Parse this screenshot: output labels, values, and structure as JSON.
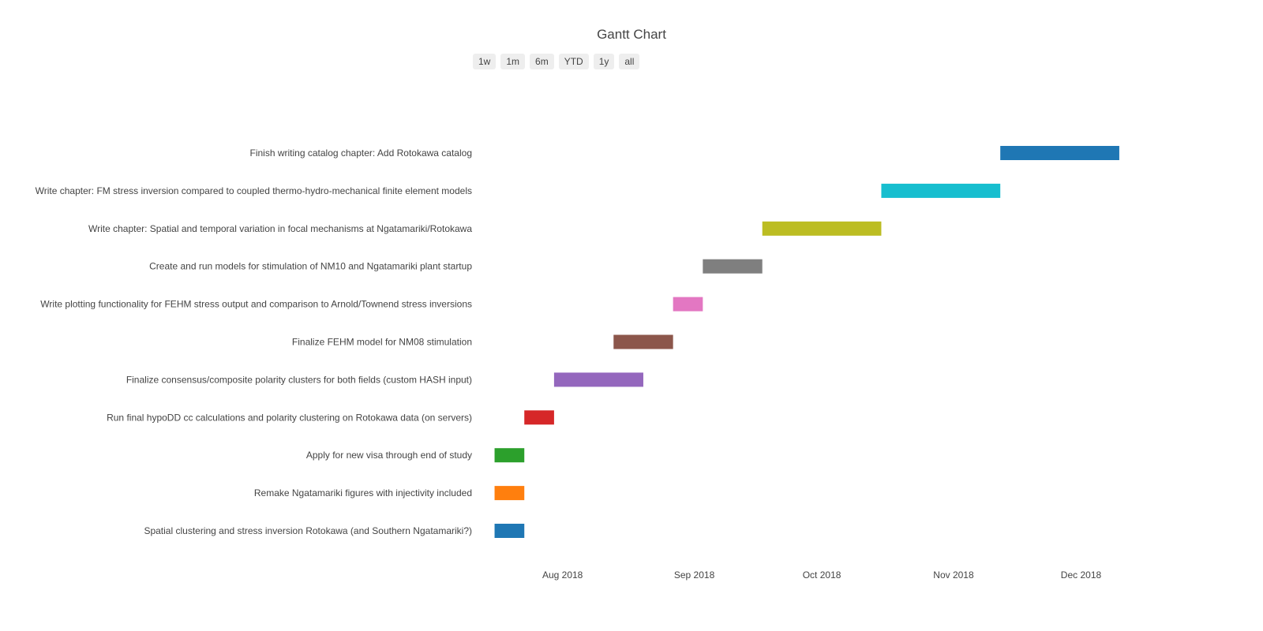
{
  "chart_data": {
    "type": "gantt",
    "title": "Gantt Chart",
    "range_selector": [
      "1w",
      "1m",
      "6m",
      "YTD",
      "1y",
      "all"
    ],
    "xlim": [
      "2018-07-12",
      "2018-12-31"
    ],
    "x_ticks": [
      {
        "date": "2018-08-01",
        "label": "Aug 2018"
      },
      {
        "date": "2018-09-01",
        "label": "Sep 2018"
      },
      {
        "date": "2018-10-01",
        "label": "Oct 2018"
      },
      {
        "date": "2018-11-01",
        "label": "Nov 2018"
      },
      {
        "date": "2018-12-01",
        "label": "Dec 2018"
      }
    ],
    "tasks": [
      {
        "name": "Spatial clustering and stress inversion Rotokawa (and Southern Ngatamariki?)",
        "start": "2018-07-16",
        "end": "2018-07-23",
        "color": "#1f77b4"
      },
      {
        "name": "Remake Ngatamariki figures with injectivity included",
        "start": "2018-07-16",
        "end": "2018-07-23",
        "color": "#ff7f0e"
      },
      {
        "name": "Apply for new visa through end of study",
        "start": "2018-07-16",
        "end": "2018-07-23",
        "color": "#2ca02c"
      },
      {
        "name": "Run final hypoDD cc calculations and polarity clustering on Rotokawa data (on servers)",
        "start": "2018-07-23",
        "end": "2018-07-30",
        "color": "#d62728"
      },
      {
        "name": "Finalize consensus/composite polarity clusters for both fields (custom HASH input)",
        "start": "2018-07-30",
        "end": "2018-08-20",
        "color": "#9467bd"
      },
      {
        "name": "Finalize FEHM model for NM08 stimulation",
        "start": "2018-08-13",
        "end": "2018-08-27",
        "color": "#8c564b"
      },
      {
        "name": "Write plotting functionality for FEHM stress output and comparison to Arnold/Townend stress inversions",
        "start": "2018-08-27",
        "end": "2018-09-03",
        "color": "#e377c2"
      },
      {
        "name": "Create and run models for stimulation of NM10 and Ngatamariki plant startup",
        "start": "2018-09-03",
        "end": "2018-09-17",
        "color": "#7f7f7f"
      },
      {
        "name": "Write chapter: Spatial and temporal variation in focal mechanisms at Ngatamariki/Rotokawa",
        "start": "2018-09-17",
        "end": "2018-10-15",
        "color": "#bcbd22"
      },
      {
        "name": "Write chapter: FM stress inversion compared to coupled thermo-hydro-mechanical finite element models",
        "start": "2018-10-15",
        "end": "2018-11-12",
        "color": "#17becf"
      },
      {
        "name": "Finish writing catalog chapter: Add Rotokawa catalog",
        "start": "2018-11-12",
        "end": "2018-12-10",
        "color": "#1f77b4"
      }
    ]
  }
}
